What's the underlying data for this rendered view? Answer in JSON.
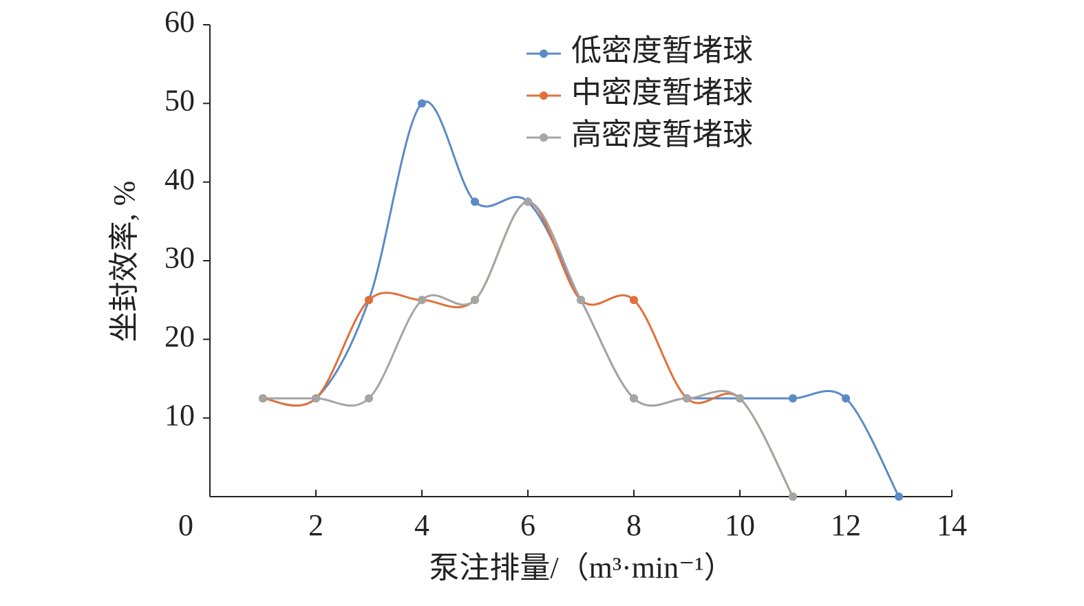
{
  "chart_data": {
    "type": "line",
    "x_label": "泵注排量/（m³·min⁻¹）",
    "y_label": "坐封效率, %",
    "xlim": [
      0,
      14
    ],
    "xticks": [
      0,
      2,
      4,
      6,
      8,
      10,
      12,
      14
    ],
    "ylim": [
      0,
      60
    ],
    "yticks": [
      10,
      20,
      30,
      40,
      50,
      60
    ],
    "smooth": true,
    "legend": "top-right",
    "series": [
      {
        "name": "低密度暂堵球",
        "color": "#5b8ac6",
        "x": [
          1,
          2,
          3,
          4,
          5,
          6,
          7,
          8,
          9,
          10,
          11,
          12,
          13
        ],
        "values": [
          12.5,
          12.5,
          25,
          50,
          37.5,
          37.5,
          25,
          12.5,
          12.5,
          12.5,
          12.5,
          12.5,
          0
        ]
      },
      {
        "name": "中密度暂堵球",
        "color": "#e0703a",
        "x": [
          1,
          2,
          3,
          4,
          5,
          6,
          7,
          8,
          9,
          10,
          11
        ],
        "values": [
          12.5,
          12.5,
          25,
          25,
          25,
          37.5,
          25,
          25,
          12.5,
          12.5,
          0
        ]
      },
      {
        "name": "高密度暂堵球",
        "color": "#a5a5a5",
        "x": [
          1,
          2,
          3,
          4,
          5,
          6,
          7,
          8,
          9,
          10,
          11
        ],
        "values": [
          12.5,
          12.5,
          12.5,
          25,
          25,
          37.5,
          25,
          12.5,
          12.5,
          12.5,
          0
        ]
      }
    ]
  }
}
